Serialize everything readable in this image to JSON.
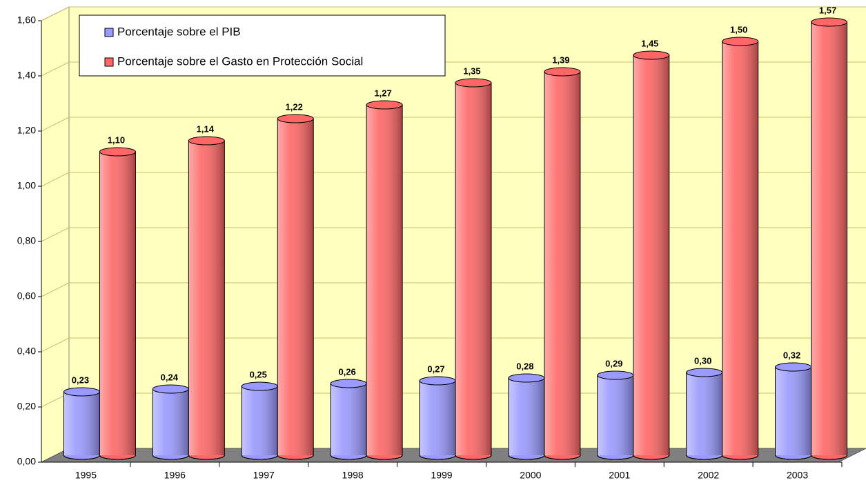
{
  "chart_data": {
    "type": "bar3d",
    "categories": [
      "1995",
      "1996",
      "1997",
      "1998",
      "1999",
      "2000",
      "2001",
      "2002",
      "2003"
    ],
    "series": [
      {
        "name": "Porcentaje sobre el PIB",
        "color": "#9999ff",
        "values": [
          0.23,
          0.24,
          0.25,
          0.26,
          0.27,
          0.28,
          0.29,
          0.3,
          0.32
        ],
        "value_labels": [
          "0,23",
          "0,24",
          "0,25",
          "0,26",
          "0,27",
          "0,28",
          "0,29",
          "0,30",
          "0,32"
        ]
      },
      {
        "name": "Porcentaje sobre el Gasto en Protección Social",
        "color": "#ff6666",
        "values": [
          1.1,
          1.14,
          1.22,
          1.27,
          1.35,
          1.39,
          1.45,
          1.5,
          1.57
        ],
        "value_labels": [
          "1,10",
          "1,14",
          "1,22",
          "1,27",
          "1,35",
          "1,39",
          "1,45",
          "1,50",
          "1,57"
        ]
      }
    ],
    "ylim": [
      0,
      1.6
    ],
    "yticks": [
      {
        "value": 0,
        "label": "0,00"
      },
      {
        "value": 0.2,
        "label": "0,20"
      },
      {
        "value": 0.4,
        "label": "0,40"
      },
      {
        "value": 0.6,
        "label": "0,60"
      },
      {
        "value": 0.8,
        "label": "0,80"
      },
      {
        "value": 1.0,
        "label": "1,00"
      },
      {
        "value": 1.2,
        "label": "1,20"
      },
      {
        "value": 1.4,
        "label": "1,40"
      },
      {
        "value": 1.6,
        "label": "1,60"
      }
    ],
    "grid": true,
    "legend": "top-left"
  }
}
